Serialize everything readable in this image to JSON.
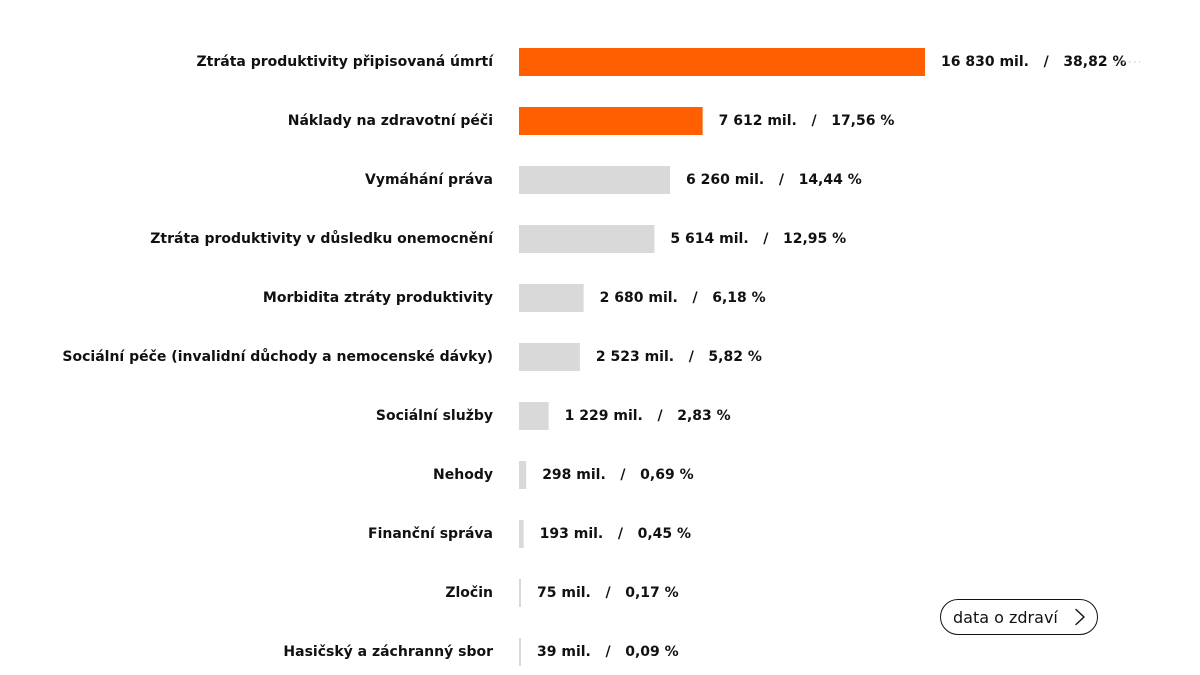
{
  "chart_data": {
    "type": "bar",
    "orientation": "horizontal",
    "title": "",
    "xlabel": "",
    "ylabel": "",
    "grid": false,
    "legend": "none",
    "highlight_color": "#ff5f00",
    "base_color": "#d9d9d9",
    "categories": [
      "Ztráta produktivity připisovaná úmrtí",
      "Náklady na zdravotní péči",
      "Vymáhání práva",
      "Ztráta produktivity v důsledku onemocnění",
      "Morbidita ztráty produktivity",
      "Sociální péče (invalidní důchody a nemocenské dávky)",
      "Sociální služby",
      "Nehody",
      "Finanční správa",
      "Zločin",
      "Hasičský a záchranný sbor"
    ],
    "values": [
      16830,
      7612,
      6260,
      5614,
      2680,
      2523,
      1229,
      298,
      193,
      75,
      39
    ],
    "value_labels": [
      "16 830 mil.   /   38,82 %",
      "7 612 mil.   /   17,56 %",
      "6 260 mil.   /   14,44 %",
      "5 614 mil.   /   12,95 %",
      "2 680 mil.   /   6,18 %",
      "2 523 mil.   /   5,82 %",
      "1 229 mil.   /   2,83 %",
      "298 mil.   /   0,69 %",
      "193 mil.   /   0,45 %",
      "75 mil.   /   0,17 %",
      "39 mil.   /   0,09 %"
    ],
    "highlighted": [
      true,
      true,
      false,
      false,
      false,
      false,
      false,
      false,
      false,
      false,
      false
    ]
  },
  "cta": {
    "label": "data o zdraví",
    "icon": "chevron-right-icon"
  }
}
